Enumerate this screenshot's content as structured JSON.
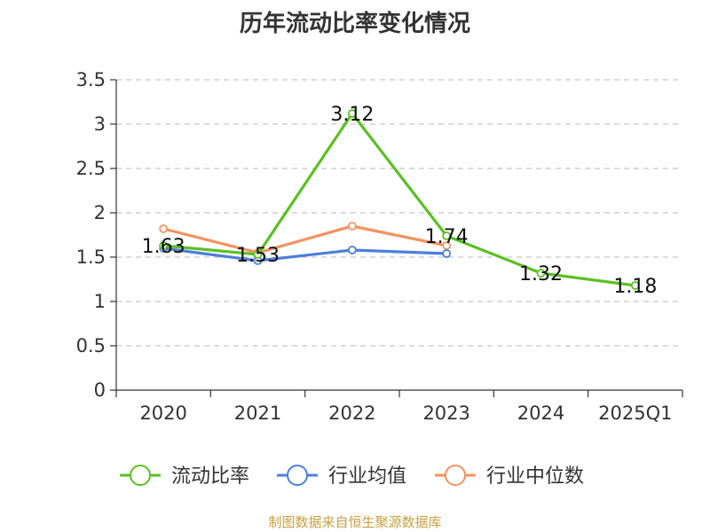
{
  "title": "历年流动比率变化情况",
  "source": "制图数据来自恒生聚源数据库",
  "colors": {
    "current_ratio": "#5ac024",
    "industry_avg": "#4c7fdb",
    "industry_median": "#f5925f"
  },
  "chart_data": {
    "type": "line",
    "categories": [
      "2020",
      "2021",
      "2022",
      "2023",
      "2024",
      "2025Q1"
    ],
    "ylim": [
      0,
      3.5
    ],
    "yticks": [
      "0",
      "0.5",
      "1",
      "1.5",
      "2",
      "2.5",
      "3",
      "3.5"
    ],
    "grid": true,
    "legend_position": "bottom",
    "series": [
      {
        "name": "流动比率",
        "color": "#5ac024",
        "values": [
          1.63,
          1.53,
          3.12,
          1.74,
          1.32,
          1.18
        ],
        "labels": [
          "1.63",
          "1.53",
          "3.12",
          "1.74",
          "1.32",
          "1.18"
        ]
      },
      {
        "name": "行业均值",
        "color": "#4c7fdb",
        "values": [
          1.6,
          1.46,
          1.58,
          1.54,
          null,
          null
        ]
      },
      {
        "name": "行业中位数",
        "color": "#f5925f",
        "values": [
          1.82,
          1.55,
          1.85,
          1.63,
          null,
          null
        ]
      }
    ]
  }
}
